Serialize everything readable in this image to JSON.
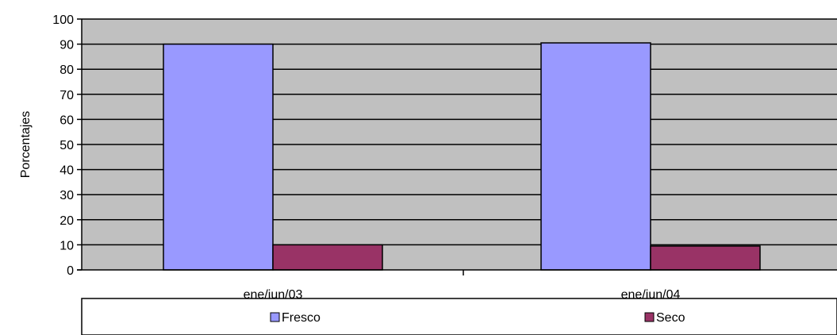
{
  "chart_data": {
    "type": "bar",
    "title": "",
    "xlabel": "",
    "ylabel": "Porcentajes",
    "ylim": [
      0,
      100
    ],
    "yticks": [
      0,
      10,
      20,
      30,
      40,
      50,
      60,
      70,
      80,
      90,
      100
    ],
    "categories": [
      "ene/jun/03",
      "ene/jun/04"
    ],
    "series": [
      {
        "name": "Fresco",
        "values": [
          90,
          90.5
        ],
        "color": "#9999ff"
      },
      {
        "name": "Seco",
        "values": [
          10,
          9.5
        ],
        "color": "#993366"
      }
    ],
    "grid": true,
    "legend": "bottom",
    "plot_background": "#c0c0c0"
  }
}
